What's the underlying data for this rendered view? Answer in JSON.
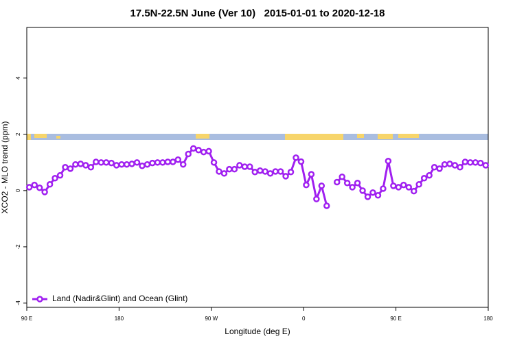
{
  "chart_data": {
    "type": "line",
    "title": "17.5N-22.5N June (Ver 10)   2015-01-01 to 2020-12-18",
    "x_label": "Longitude (deg E)",
    "y_label": "XCO2 - MLO trend (ppm)",
    "xlim": [
      90,
      540
    ],
    "ylim": [
      -4.15,
      5.8
    ],
    "xticks": [
      {
        "value": 90,
        "label": "90 E"
      },
      180,
      {
        "value": 270,
        "label": "90 W"
      },
      {
        "value": 360,
        "label": "0"
      },
      {
        "value": 450,
        "label": "90 E"
      },
      {
        "value": 540,
        "label": "180"
      }
    ],
    "yticks": [
      -4,
      -2,
      0,
      2,
      4
    ],
    "legend": "bottom-left",
    "x": [
      92.5,
      97.5,
      102.5,
      107.5,
      112.5,
      117.5,
      122.5,
      127.5,
      132.5,
      137.5,
      142.5,
      147.5,
      152.5,
      157.5,
      162.5,
      167.5,
      172.5,
      177.5,
      182.5,
      187.5,
      192.5,
      197.5,
      202.5,
      207.5,
      212.5,
      217.5,
      222.5,
      227.5,
      232.5,
      237.5,
      242.5,
      247.5,
      252.5,
      257.5,
      262.5,
      267.5,
      272.5,
      277.5,
      282.5,
      287.5,
      292.5,
      297.5,
      302.5,
      307.5,
      312.5,
      317.5,
      322.5,
      327.5,
      332.5,
      337.5,
      342.5,
      347.5,
      352.5,
      357.5,
      362.5,
      367.5,
      372.5,
      377.5,
      382.5,
      387.5,
      392.5,
      397.5,
      402.5,
      407.5,
      412.5,
      417.5,
      422.5,
      427.5,
      432.5,
      437.5,
      442.5,
      447.5,
      452.5,
      457.5,
      462.5,
      467.5,
      472.5,
      477.5,
      482.5,
      487.5,
      492.5,
      497.5,
      502.5,
      507.5,
      512.5,
      517.5,
      522.5,
      527.5,
      532.5,
      537.5
    ],
    "series": [
      {
        "name": "Land (Nadir&Glint) and Ocean (Glint)",
        "color": "#a020f0",
        "values": [
          0.12,
          0.2,
          0.1,
          -0.05,
          0.22,
          0.44,
          0.54,
          0.83,
          0.78,
          0.93,
          0.95,
          0.9,
          0.83,
          1.02,
          1.0,
          1.0,
          0.98,
          0.9,
          0.93,
          0.93,
          0.95,
          1.0,
          0.88,
          0.93,
          0.98,
          1.0,
          1.0,
          1.02,
          1.02,
          1.1,
          0.93,
          1.3,
          1.5,
          1.44,
          1.37,
          1.4,
          1.0,
          0.68,
          0.61,
          0.76,
          0.76,
          0.9,
          0.85,
          0.85,
          0.66,
          0.71,
          0.68,
          0.61,
          0.68,
          0.68,
          0.51,
          0.66,
          1.17,
          1.03,
          0.2,
          0.58,
          -0.3,
          0.17,
          -0.54,
          null,
          0.3,
          0.49,
          0.27,
          0.12,
          0.27,
          0,
          -0.22,
          -0.07,
          -0.17,
          0.07,
          1.05,
          0.17,
          0.12,
          0.2,
          0.12,
          -0.02,
          0.22,
          0.44,
          0.54,
          0.83,
          0.78,
          0.93,
          0.95,
          0.9,
          0.83,
          1.02,
          1.0,
          1.0,
          0.98,
          0.9
        ]
      }
    ]
  }
}
